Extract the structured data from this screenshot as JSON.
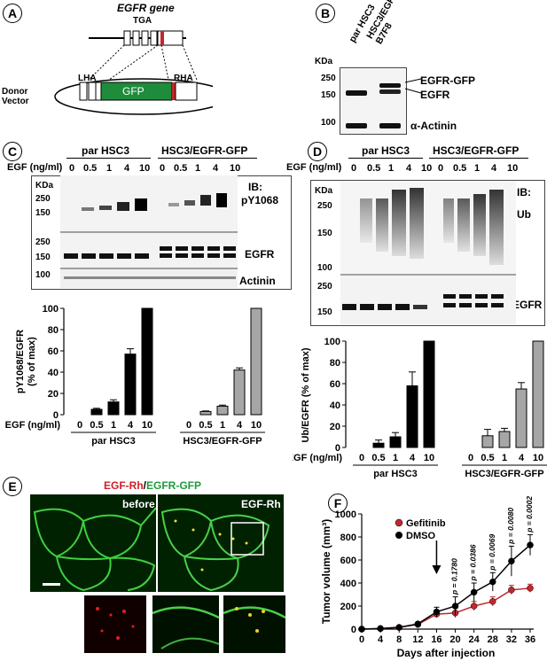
{
  "panels": {
    "A": {
      "letter": "A",
      "gene_label": "EGFR gene",
      "stop_codon": "TGA",
      "lha": "LHA",
      "gfp": "GFP",
      "rha": "RHA",
      "donor_vector": "Donor\nVector"
    },
    "B": {
      "letter": "B",
      "kda": "KDa",
      "lane1": "par HSC3",
      "lane2": "HSC3/EGFR-GFP\nB7F8",
      "markers": [
        "250",
        "150",
        "100"
      ],
      "band_egfr_gfp": "EGFR-GFP",
      "band_egfr": "EGFR",
      "band_actinin": "α-Actinin"
    },
    "C": {
      "letter": "C",
      "group1": "par HSC3",
      "group2": "HSC3/EGFR-GFP",
      "egf_label": "EGF (ng/ml)",
      "doses": [
        "0",
        "0.5",
        "1",
        "4",
        "10"
      ],
      "kda": "KDa",
      "ib": "IB:",
      "pY": "pY1068",
      "egfr": "EGFR",
      "actinin": "Actinin",
      "markers_top": [
        "250",
        "150"
      ],
      "markers_mid": [
        "250",
        "150"
      ],
      "markers_bot": [
        "100"
      ]
    },
    "D": {
      "letter": "D",
      "group1": "par HSC3",
      "group2": "HSC3/EGFR-GFP",
      "egf_label": "EGF (ng/ml)",
      "doses": [
        "0",
        "0.5",
        "1",
        "4",
        "10"
      ],
      "kda": "KDa",
      "ib": "IB:",
      "ub": "Ub",
      "egfr": "EGFR",
      "markers_top": [
        "250",
        "150",
        "100"
      ],
      "markers_mid": [
        "250",
        "150"
      ]
    },
    "E": {
      "letter": "E",
      "title_red": "EGF-Rh",
      "title_sep": "/",
      "title_green": "EGFR-GFP",
      "before": "before",
      "after": "EGF-Rh"
    },
    "F": {
      "letter": "F",
      "legend_gef": "Gefitinib",
      "legend_dmso": "DMSO"
    }
  },
  "chart_data": [
    {
      "id": "C",
      "type": "bar",
      "ylabel": "pY1068/EGFR\n(% of max)",
      "xlabel": "EGF (ng/ml)",
      "ylim": [
        0,
        100
      ],
      "yticks": [
        0,
        20,
        40,
        60,
        80,
        100
      ],
      "groups": [
        "par HSC3",
        "HSC3/EGFR-GFP"
      ],
      "categories": [
        "0",
        "0.5",
        "1",
        "4",
        "10"
      ],
      "series": [
        {
          "name": "par HSC3",
          "values": [
            0,
            5,
            12,
            57,
            100
          ],
          "errors": [
            0,
            1,
            2,
            5,
            0
          ],
          "color": "#000000"
        },
        {
          "name": "HSC3/EGFR-GFP",
          "values": [
            0,
            3,
            8,
            42,
            100
          ],
          "errors": [
            0,
            0.5,
            1,
            2,
            0
          ],
          "color": "#a6a6a6"
        }
      ]
    },
    {
      "id": "D",
      "type": "bar",
      "ylabel": "Ub/EGFR (% of max)",
      "xlabel": "EGF (ng/ml)",
      "ylim": [
        0,
        100
      ],
      "yticks": [
        0,
        20,
        40,
        60,
        80,
        100
      ],
      "groups": [
        "par HSC3",
        "HSC3/EGFR-GFP"
      ],
      "categories": [
        "0",
        "0.5",
        "1",
        "4",
        "10"
      ],
      "series": [
        {
          "name": "par HSC3",
          "values": [
            0,
            4,
            10,
            58,
            100
          ],
          "errors": [
            0,
            3,
            4,
            13,
            0
          ],
          "color": "#000000"
        },
        {
          "name": "HSC3/EGFR-GFP",
          "values": [
            0,
            11,
            15,
            55,
            100
          ],
          "errors": [
            0,
            6,
            3,
            6,
            0
          ],
          "color": "#a6a6a6"
        }
      ]
    },
    {
      "id": "F",
      "type": "line",
      "ylabel": "Tumor volume (mm³)",
      "xlabel": "Days after injection",
      "xlim": [
        0,
        36
      ],
      "ylim": [
        0,
        1000
      ],
      "xticks": [
        0,
        4,
        8,
        12,
        16,
        20,
        24,
        28,
        32,
        36
      ],
      "yticks": [
        0,
        200,
        400,
        600,
        800,
        1000
      ],
      "arrow_day": 16,
      "series": [
        {
          "name": "Gefitinib",
          "color": "#c0282d",
          "x": [
            0,
            4,
            8,
            12,
            16,
            20,
            24,
            28,
            32,
            36
          ],
          "y": [
            0,
            5,
            15,
            40,
            130,
            140,
            200,
            240,
            340,
            355
          ],
          "err": [
            0,
            3,
            5,
            10,
            30,
            40,
            40,
            40,
            40,
            35
          ]
        },
        {
          "name": "DMSO",
          "color": "#000000",
          "x": [
            0,
            4,
            8,
            12,
            16,
            20,
            24,
            28,
            32,
            36
          ],
          "y": [
            0,
            5,
            15,
            45,
            150,
            200,
            320,
            410,
            590,
            730
          ],
          "err": [
            0,
            3,
            5,
            10,
            40,
            80,
            80,
            80,
            130,
            90
          ]
        }
      ],
      "annotations": [
        "p = 0.1780",
        "p = 0.0386",
        "p = 0.0069",
        "p = 0.0080",
        "p = 0.0002"
      ],
      "annotation_days": [
        20,
        24,
        28,
        32,
        36
      ]
    }
  ]
}
